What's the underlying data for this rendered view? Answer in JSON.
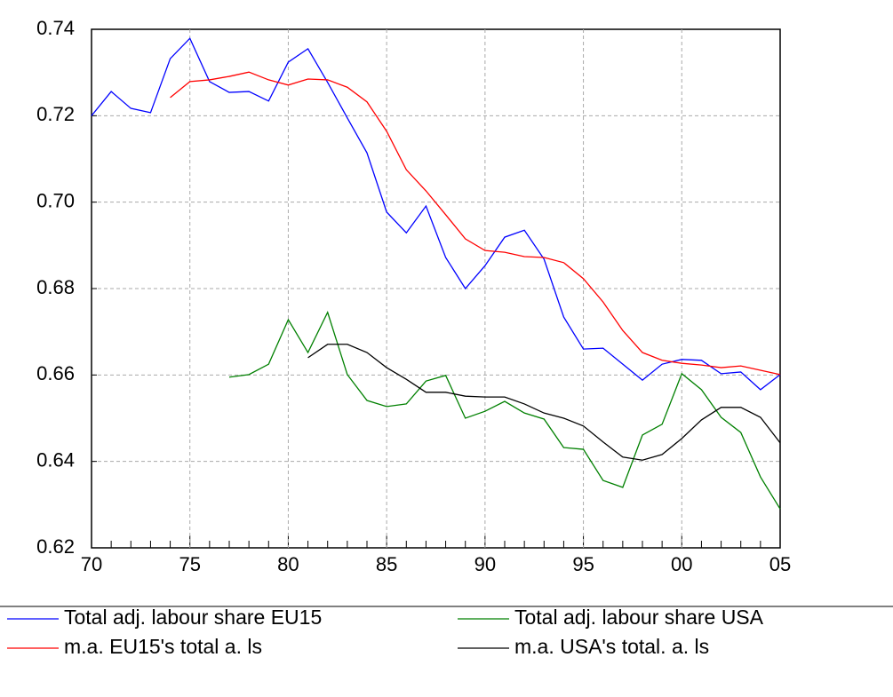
{
  "chart_data": {
    "type": "line",
    "categories": [
      "70",
      null,
      null,
      null,
      null,
      "75",
      null,
      null,
      null,
      null,
      "80",
      null,
      null,
      null,
      null,
      "85",
      null,
      null,
      null,
      null,
      "90",
      null,
      null,
      null,
      null,
      "95",
      null,
      null,
      null,
      null,
      "00",
      null,
      null,
      null,
      null,
      "05"
    ],
    "ylim": [
      0.62,
      0.74
    ],
    "yticks": [
      0.62,
      0.64,
      0.66,
      0.68,
      {
        "value": 0.7,
        "label": "0.70"
      },
      0.72,
      0.74
    ],
    "grid": true,
    "legend": "bottom",
    "series": [
      {
        "name": "Total adj. labour share EU15",
        "color": "#0000ff",
        "values": [
          0.72,
          0.7256,
          0.7217,
          0.7207,
          0.7332,
          0.7379,
          0.7279,
          0.7254,
          0.7256,
          0.7234,
          0.7324,
          0.7355,
          0.7277,
          0.7195,
          0.7114,
          0.6977,
          0.6929,
          0.6991,
          0.6872,
          0.68,
          0.6853,
          0.6919,
          0.6935,
          0.6868,
          0.6734,
          0.666,
          0.6662,
          0.6625,
          0.6588,
          0.6625,
          0.6636,
          0.6634,
          0.6603,
          0.6607,
          0.6566,
          0.6601
        ]
      },
      {
        "name": "Total adj. labour share USA",
        "color": "#008000",
        "values": [
          null,
          null,
          null,
          null,
          null,
          null,
          null,
          0.6595,
          0.6601,
          0.6625,
          0.6728,
          0.6652,
          0.6745,
          0.6601,
          0.6541,
          0.6527,
          0.6533,
          0.6586,
          0.6599,
          0.65,
          0.6516,
          0.6539,
          0.6512,
          0.6498,
          0.6432,
          0.6428,
          0.6356,
          0.634,
          0.6461,
          0.6486,
          0.6603,
          0.6566,
          0.6502,
          0.6467,
          0.6364,
          0.629
        ]
      },
      {
        "name": "m.a. EU15's total a. ls",
        "color": "#ff0000",
        "values": [
          null,
          null,
          null,
          null,
          0.7242,
          0.7279,
          0.7283,
          0.7291,
          0.7301,
          0.7283,
          0.7271,
          0.7285,
          0.7283,
          0.7266,
          0.7232,
          0.7164,
          0.7075,
          0.7026,
          0.6971,
          0.6915,
          0.6888,
          0.6884,
          0.6874,
          0.6872,
          0.686,
          0.6823,
          0.6769,
          0.6703,
          0.6652,
          0.6634,
          0.6627,
          0.6623,
          0.6617,
          0.6621,
          0.6611,
          0.6601
        ]
      },
      {
        "name": "m.a. USA's total. a. ls",
        "color": "#000000",
        "values": [
          null,
          null,
          null,
          null,
          null,
          null,
          null,
          null,
          null,
          null,
          null,
          0.664,
          0.6671,
          0.6671,
          0.6652,
          0.6617,
          0.659,
          0.656,
          0.656,
          0.6551,
          0.6549,
          0.6549,
          0.6533,
          0.6512,
          0.65,
          0.6482,
          0.6445,
          0.641,
          0.6403,
          0.6416,
          0.6453,
          0.6496,
          0.6525,
          0.6525,
          0.6502,
          0.6443
        ]
      }
    ]
  }
}
